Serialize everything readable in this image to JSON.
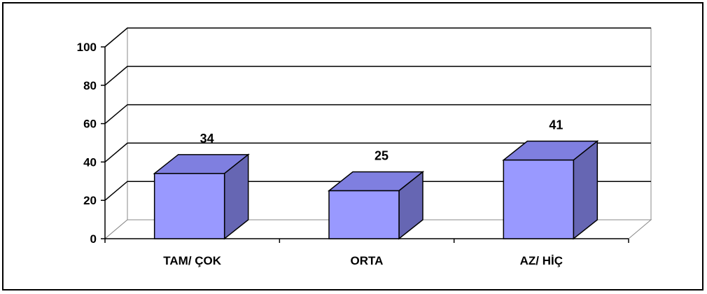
{
  "chart_data": {
    "type": "bar",
    "style": "3d-column",
    "categories": [
      "TAM/ ÇOK",
      "ORTA",
      "AZ/ HİÇ"
    ],
    "series": [
      {
        "values": [
          34,
          25,
          41
        ]
      }
    ],
    "data_labels": [
      "34",
      "25",
      "41"
    ],
    "yticks": [
      "0",
      "20",
      "40",
      "60",
      "80",
      "100"
    ],
    "ylim": [
      0,
      100
    ],
    "title": "",
    "xlabel": "",
    "ylabel": "",
    "grid": true,
    "legend": "none",
    "colors": {
      "bar_front": "#9999ff",
      "bar_top": "#7f7fe0",
      "bar_side": "#6666b3",
      "outline": "#000000",
      "gridline": "#000000",
      "wall": "#ffffff"
    }
  }
}
